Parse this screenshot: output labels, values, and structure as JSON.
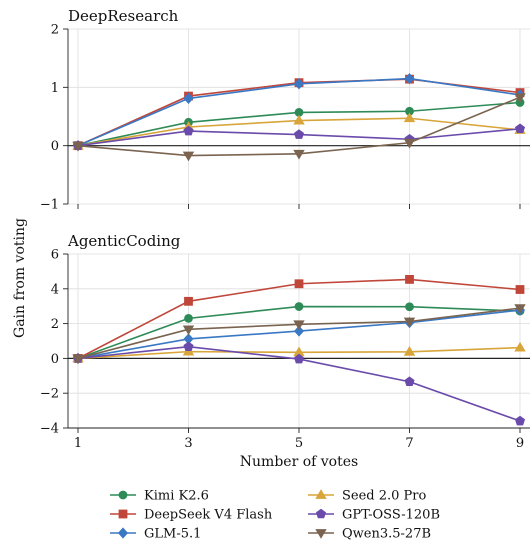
{
  "colors": {
    "Kimi K2.6": "#2e8b57",
    "DeepSeek V4 Flash": "#c0463a",
    "GLM-5.1": "#3a78c4",
    "Seed 2.0 Pro": "#d8a53a",
    "GPT-OSS-120B": "#6a4bab",
    "Qwen3.5-27B": "#7a6450"
  },
  "markers": {
    "Kimi K2.6": "circle",
    "DeepSeek V4 Flash": "square",
    "GLM-5.1": "diamond",
    "Seed 2.0 Pro": "triangle-up",
    "GPT-OSS-120B": "pentagon",
    "Qwen3.5-27B": "triangle-down"
  },
  "chart_data": [
    {
      "type": "line",
      "title": "DeepResearch",
      "x": [
        1,
        3,
        5,
        7,
        9
      ],
      "ylim": [
        -1,
        2
      ],
      "yticks": [
        "2",
        "1",
        "0",
        "−1"
      ],
      "ytick_values": [
        2,
        1,
        0,
        -1
      ],
      "grid": true,
      "series": [
        {
          "name": "Kimi K2.6",
          "values": [
            0,
            0.4,
            0.57,
            0.59,
            0.74
          ]
        },
        {
          "name": "DeepSeek V4 Flash",
          "values": [
            0,
            0.85,
            1.08,
            1.14,
            0.91
          ]
        },
        {
          "name": "GLM-5.1",
          "values": [
            0,
            0.81,
            1.06,
            1.15,
            0.87
          ]
        },
        {
          "name": "Seed 2.0 Pro",
          "values": [
            0,
            0.32,
            0.43,
            0.47,
            0.27
          ]
        },
        {
          "name": "GPT-OSS-120B",
          "values": [
            0,
            0.25,
            0.19,
            0.11,
            0.29
          ]
        },
        {
          "name": "Qwen3.5-27B",
          "values": [
            0,
            -0.17,
            -0.14,
            0.05,
            0.83
          ]
        }
      ]
    },
    {
      "type": "line",
      "title": "AgenticCoding",
      "x": [
        1,
        3,
        5,
        7,
        9
      ],
      "xticks": [
        "1",
        "3",
        "5",
        "7",
        "9"
      ],
      "ylim": [
        -4,
        6
      ],
      "yticks": [
        "6",
        "4",
        "2",
        "0",
        "−2",
        "−4"
      ],
      "ytick_values": [
        6,
        4,
        2,
        0,
        -2,
        -4
      ],
      "grid": true,
      "xlabel": "Number of votes",
      "series": [
        {
          "name": "Kimi K2.6",
          "values": [
            0,
            2.3,
            2.98,
            2.97,
            2.72
          ]
        },
        {
          "name": "DeepSeek V4 Flash",
          "values": [
            0,
            3.28,
            4.29,
            4.54,
            3.96
          ]
        },
        {
          "name": "GLM-5.1",
          "values": [
            0,
            1.12,
            1.57,
            2.06,
            2.78
          ]
        },
        {
          "name": "Seed 2.0 Pro",
          "values": [
            0,
            0.39,
            0.35,
            0.38,
            0.62
          ]
        },
        {
          "name": "GPT-OSS-120B",
          "values": [
            0,
            0.67,
            -0.04,
            -1.34,
            -3.6
          ]
        },
        {
          "name": "Qwen3.5-27B",
          "values": [
            0,
            1.67,
            1.96,
            2.12,
            2.89
          ]
        }
      ]
    }
  ],
  "ylabel": "Gain from voting",
  "legend": {
    "placement": "bottom-center",
    "columns": [
      [
        "Kimi K2.6",
        "DeepSeek V4 Flash",
        "GLM-5.1"
      ],
      [
        "Seed 2.0 Pro",
        "GPT-OSS-120B",
        "Qwen3.5-27B"
      ]
    ]
  }
}
